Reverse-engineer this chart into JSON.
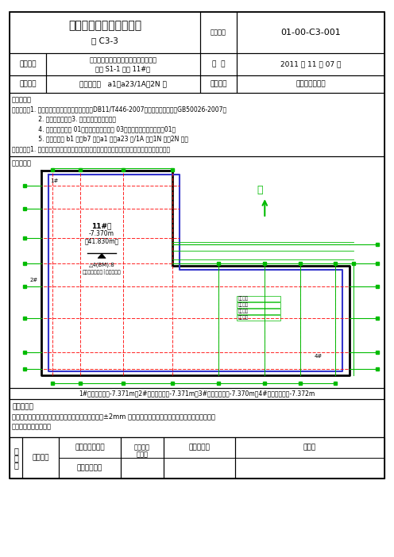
{
  "title": "楼层平面及标高实测记录",
  "subtitle": "表 C3-3",
  "doc_no_label": "资料编号",
  "doc_no": "01-00-C3-001",
  "row1_c1": "工程名称",
  "row1_c2_line1": "海淀区苏家坨镇前沙涧北区定向安置房",
  "row1_c2_line2": "项目 S1-1 地块 11#楼",
  "row1_c3": "日  期",
  "row1_c4": "2011 年 11 月 07 日",
  "row2_c1": "放线部位",
  "row2_c2": "防水保护墙   a1～a23/1A～2N 轴",
  "row2_c3": "放线内容",
  "row2_c4": "防水保护墙边线",
  "basis_title": "验线依据：",
  "basis_lines": [
    "一、依据：1. 《北京市建筑施工测量技术规程》DB11/T446-2007，《工程测量规范》GB50026-2007；",
    "              2. 查遗测量成果；3. 施工测量方案、交底。",
    "              4. 总平面图一建通 01；首层平面图一建通 03、基础底板平面图结施一01。",
    "              5. 定位控制桩 b1 轴、b7 轴、a1 轴、a23 轴/1A 轴、1N 轴、2N 轴。",
    "二、内容：1. 依据以上内容及主控轴线和基础底板平面图，检验防水保护墙边线、距轴线尺寸；"
  ],
  "sketch_title": "放线简图：",
  "bottom_note": "1#标高实测点：-7.371m；2#标高实测点：-7.371m；3#标高实测点：-7.370m；4#标高实测点：-7.372m",
  "check_title": "检查意见：",
  "check_line1": "经检查，基础底板防水保护墙的线位置准确，误差在±2mm 以内，符合图纸设计及施工测量方案要求，同意验",
  "check_line2": "收，可进行下步施工。",
  "sign_c1": "签\n字\n栏",
  "sign_c2": "施工单位",
  "sign_c3_line1": "北京市第三建筑",
  "sign_c3_line2": "工程有限公司",
  "sign_c4_line1": "专业技术",
  "sign_c4_line2": "负责人",
  "sign_c5": "专业质检员",
  "sign_c6": "施测人",
  "colors": {
    "black": "#000000",
    "red": "#FF0000",
    "green": "#00BB00",
    "blue": "#3333CC",
    "bg": "#FFFFFF"
  },
  "bld_label_line1": "11#楼",
  "bld_label_line2": "-7.370m",
  "bld_label_line3": "（41.830m）",
  "bm_label": "△4(BM).8",
  "bm_sub": "绝对标高实测值│设计标高值"
}
